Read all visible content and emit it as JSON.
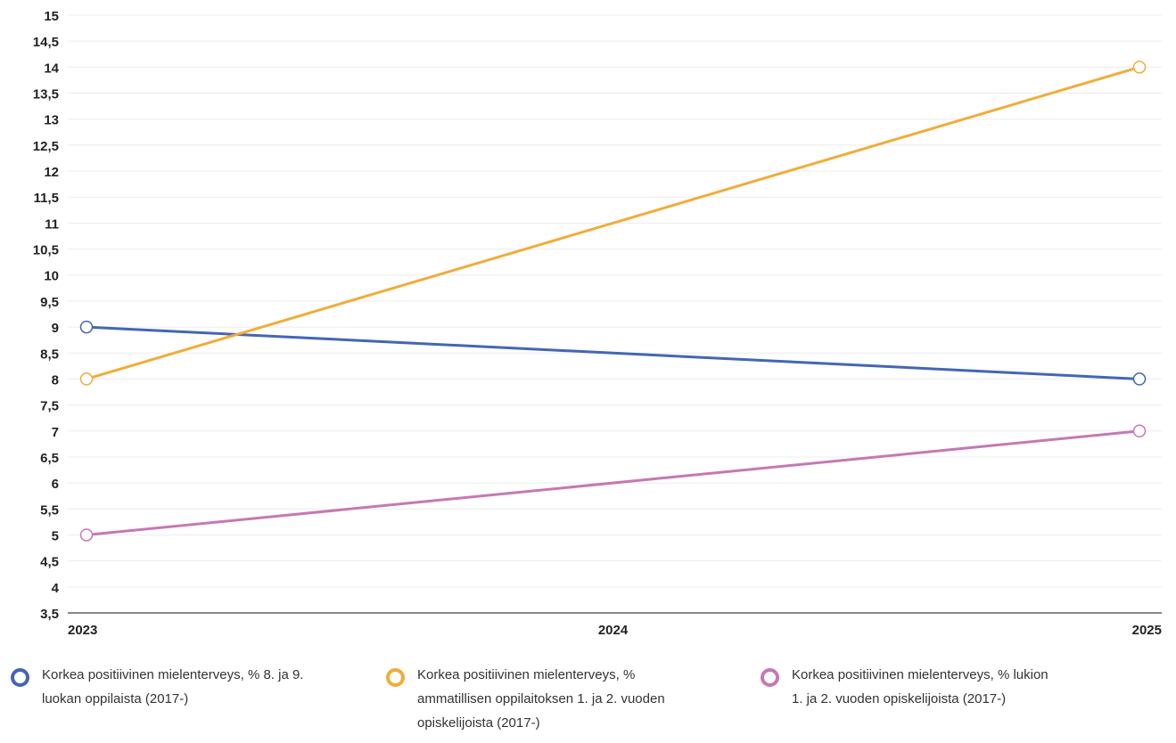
{
  "chart_data": {
    "type": "line",
    "title": "",
    "xlabel": "",
    "ylabel": "",
    "x": [
      "2023",
      "2024",
      "2025"
    ],
    "ylim": [
      3.5,
      15
    ],
    "yticks": [
      "3,5",
      "4",
      "4,5",
      "5",
      "5,5",
      "6",
      "6,5",
      "7",
      "7,5",
      "8",
      "8,5",
      "9",
      "9,5",
      "10",
      "10,5",
      "11",
      "11,5",
      "12",
      "12,5",
      "13",
      "13,5",
      "14",
      "14,5",
      "15"
    ],
    "grid": true,
    "legend_position": "bottom",
    "series": [
      {
        "name": "Korkea positiivinen mielenterveys, % 8. ja 9. luokan oppilaista (2017-)",
        "name_lines": [
          "Korkea positiivinen mielenterveys, % 8. ja 9.",
          "luokan oppilaista (2017-)"
        ],
        "color": "#4466b4",
        "points": [
          {
            "x": "2023",
            "y": 9
          },
          {
            "x": "2025",
            "y": 8
          }
        ]
      },
      {
        "name": "Korkea positiivinen mielenterveys, % ammatillisen oppilaitoksen 1. ja 2. vuoden opiskelijoista (2017-)",
        "name_lines": [
          "Korkea positiivinen mielenterveys, %",
          "ammatillisen oppilaitoksen 1. ja 2. vuoden",
          "opiskelijoista (2017-)"
        ],
        "color": "#f0ad3a",
        "points": [
          {
            "x": "2023",
            "y": 8
          },
          {
            "x": "2025",
            "y": 14
          }
        ]
      },
      {
        "name": "Korkea positiivinen mielenterveys, % lukion 1. ja 2. vuoden opiskelijoista (2017-)",
        "name_lines": [
          "Korkea positiivinen mielenterveys, % lukion",
          "1. ja 2. vuoden opiskelijoista (2017-)"
        ],
        "color": "#c678b4",
        "points": [
          {
            "x": "2023",
            "y": 5
          },
          {
            "x": "2025",
            "y": 7
          }
        ]
      }
    ]
  }
}
